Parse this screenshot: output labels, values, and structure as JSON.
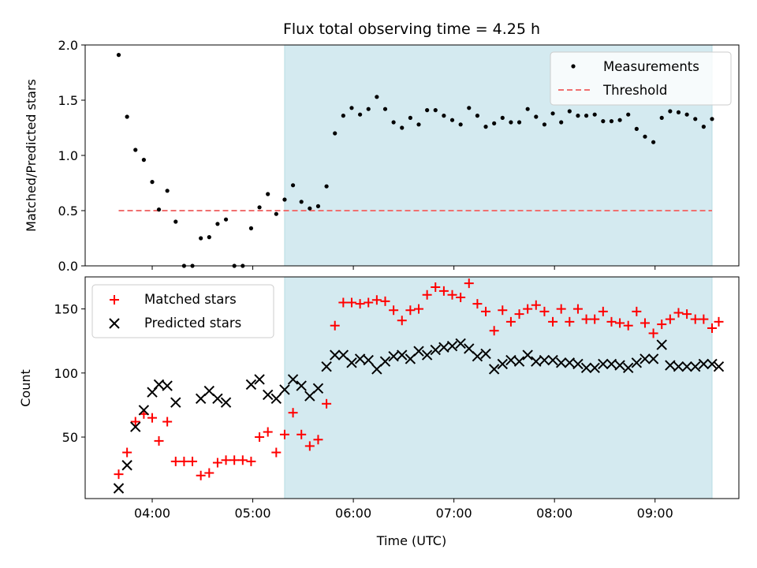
{
  "chart_data": [
    {
      "type": "scatter",
      "title": "Flux total observing time = 4.25 h",
      "xlabel": "",
      "ylabel": "Matched/Predicted stars",
      "ylim": [
        0,
        2.0
      ],
      "yticks": [
        "0.0",
        "0.5",
        "1.0",
        "1.5",
        "2.0"
      ],
      "x_time_range": [
        "03:20",
        "09:50"
      ],
      "shaded_span": [
        "05:19",
        "09:34"
      ],
      "shade_color": "#d4eaf0",
      "legend": {
        "placement": "top-right",
        "entries": [
          "Measurements",
          "Threshold"
        ]
      },
      "series": [
        {
          "name": "Measurements",
          "color": "#000000",
          "marker": "dot",
          "points": [
            [
              "03:40",
              1.91
            ],
            [
              "03:45",
              1.35
            ],
            [
              "03:50",
              1.05
            ],
            [
              "03:55",
              0.96
            ],
            [
              "04:00",
              0.76
            ],
            [
              "04:04",
              0.51
            ],
            [
              "04:09",
              0.68
            ],
            [
              "04:14",
              0.4
            ],
            [
              "04:19",
              0.0
            ],
            [
              "04:24",
              0.0
            ],
            [
              "04:29",
              0.25
            ],
            [
              "04:34",
              0.26
            ],
            [
              "04:39",
              0.38
            ],
            [
              "04:44",
              0.42
            ],
            [
              "04:49",
              0.0
            ],
            [
              "04:54",
              0.0
            ],
            [
              "04:59",
              0.34
            ],
            [
              "05:04",
              0.53
            ],
            [
              "05:09",
              0.65
            ],
            [
              "05:14",
              0.47
            ],
            [
              "05:19",
              0.6
            ],
            [
              "05:24",
              0.73
            ],
            [
              "05:29",
              0.58
            ],
            [
              "05:34",
              0.52
            ],
            [
              "05:39",
              0.54
            ],
            [
              "05:44",
              0.72
            ],
            [
              "05:49",
              1.2
            ],
            [
              "05:54",
              1.36
            ],
            [
              "05:59",
              1.43
            ],
            [
              "06:04",
              1.37
            ],
            [
              "06:09",
              1.42
            ],
            [
              "06:14",
              1.53
            ],
            [
              "06:19",
              1.42
            ],
            [
              "06:24",
              1.3
            ],
            [
              "06:29",
              1.25
            ],
            [
              "06:34",
              1.34
            ],
            [
              "06:39",
              1.28
            ],
            [
              "06:44",
              1.41
            ],
            [
              "06:49",
              1.41
            ],
            [
              "06:54",
              1.36
            ],
            [
              "06:59",
              1.32
            ],
            [
              "07:04",
              1.28
            ],
            [
              "07:09",
              1.43
            ],
            [
              "07:14",
              1.36
            ],
            [
              "07:19",
              1.26
            ],
            [
              "07:24",
              1.29
            ],
            [
              "07:29",
              1.34
            ],
            [
              "07:34",
              1.3
            ],
            [
              "07:39",
              1.3
            ],
            [
              "07:44",
              1.42
            ],
            [
              "07:49",
              1.35
            ],
            [
              "07:54",
              1.28
            ],
            [
              "07:59",
              1.38
            ],
            [
              "08:04",
              1.3
            ],
            [
              "08:09",
              1.4
            ],
            [
              "08:14",
              1.36
            ],
            [
              "08:19",
              1.36
            ],
            [
              "08:24",
              1.37
            ],
            [
              "08:29",
              1.31
            ],
            [
              "08:34",
              1.31
            ],
            [
              "08:39",
              1.32
            ],
            [
              "08:44",
              1.37
            ],
            [
              "08:49",
              1.24
            ],
            [
              "08:54",
              1.17
            ],
            [
              "08:59",
              1.12
            ],
            [
              "09:04",
              1.34
            ],
            [
              "09:09",
              1.4
            ],
            [
              "09:14",
              1.39
            ],
            [
              "09:19",
              1.37
            ],
            [
              "09:24",
              1.33
            ],
            [
              "09:29",
              1.26
            ],
            [
              "09:34",
              1.33
            ]
          ]
        },
        {
          "name": "Threshold",
          "color": "#f07070",
          "style": "dashed",
          "points": [
            [
              "03:40",
              0.5
            ],
            [
              "09:34",
              0.5
            ]
          ]
        }
      ]
    },
    {
      "type": "scatter",
      "title": "",
      "xlabel": "Time (UTC)",
      "ylabel": "Count",
      "ylim": [
        2,
        175
      ],
      "yticks": [
        "50",
        "100",
        "150"
      ],
      "xticks": [
        "04:00",
        "05:00",
        "06:00",
        "07:00",
        "08:00",
        "09:00"
      ],
      "x_time_range": [
        "03:20",
        "09:50"
      ],
      "shaded_span": [
        "05:19",
        "09:34"
      ],
      "shade_color": "#d4eaf0",
      "legend": {
        "placement": "top-left",
        "entries": [
          "Matched stars",
          "Predicted stars"
        ]
      },
      "series": [
        {
          "name": "Matched stars",
          "color": "#ff0000",
          "marker": "plus",
          "points": [
            [
              "03:40",
              21
            ],
            [
              "03:45",
              38
            ],
            [
              "03:50",
              62
            ],
            [
              "03:55",
              68
            ],
            [
              "04:00",
              65
            ],
            [
              "04:04",
              47
            ],
            [
              "04:09",
              62
            ],
            [
              "04:14",
              31
            ],
            [
              "04:19",
              31
            ],
            [
              "04:24",
              31
            ],
            [
              "04:29",
              20
            ],
            [
              "04:34",
              22
            ],
            [
              "04:39",
              30
            ],
            [
              "04:44",
              32
            ],
            [
              "04:49",
              32
            ],
            [
              "04:54",
              32
            ],
            [
              "04:59",
              31
            ],
            [
              "05:04",
              50
            ],
            [
              "05:09",
              54
            ],
            [
              "05:14",
              38
            ],
            [
              "05:19",
              52
            ],
            [
              "05:24",
              69
            ],
            [
              "05:29",
              52
            ],
            [
              "05:34",
              43
            ],
            [
              "05:39",
              48
            ],
            [
              "05:44",
              76
            ],
            [
              "05:49",
              137
            ],
            [
              "05:54",
              155
            ],
            [
              "05:59",
              155
            ],
            [
              "06:04",
              154
            ],
            [
              "06:09",
              155
            ],
            [
              "06:14",
              157
            ],
            [
              "06:19",
              156
            ],
            [
              "06:24",
              149
            ],
            [
              "06:29",
              141
            ],
            [
              "06:34",
              149
            ],
            [
              "06:39",
              150
            ],
            [
              "06:44",
              161
            ],
            [
              "06:49",
              167
            ],
            [
              "06:54",
              164
            ],
            [
              "06:59",
              161
            ],
            [
              "07:04",
              159
            ],
            [
              "07:09",
              170
            ],
            [
              "07:14",
              154
            ],
            [
              "07:19",
              148
            ],
            [
              "07:24",
              133
            ],
            [
              "07:29",
              149
            ],
            [
              "07:34",
              140
            ],
            [
              "07:39",
              146
            ],
            [
              "07:44",
              150
            ],
            [
              "07:49",
              153
            ],
            [
              "07:54",
              148
            ],
            [
              "07:59",
              140
            ],
            [
              "08:04",
              150
            ],
            [
              "08:09",
              140
            ],
            [
              "08:14",
              150
            ],
            [
              "08:19",
              142
            ],
            [
              "08:24",
              142
            ],
            [
              "08:29",
              148
            ],
            [
              "08:34",
              140
            ],
            [
              "08:39",
              139
            ],
            [
              "08:44",
              137
            ],
            [
              "08:49",
              148
            ],
            [
              "08:54",
              139
            ],
            [
              "08:59",
              131
            ],
            [
              "09:04",
              138
            ],
            [
              "09:09",
              142
            ],
            [
              "09:14",
              147
            ],
            [
              "09:19",
              146
            ],
            [
              "09:24",
              142
            ],
            [
              "09:29",
              142
            ],
            [
              "09:34",
              135
            ],
            [
              "09:38",
              140
            ]
          ]
        },
        {
          "name": "Predicted stars",
          "color": "#000000",
          "marker": "x",
          "points": [
            [
              "03:40",
              10
            ],
            [
              "03:45",
              28
            ],
            [
              "03:50",
              58
            ],
            [
              "03:55",
              71
            ],
            [
              "04:00",
              85
            ],
            [
              "04:04",
              91
            ],
            [
              "04:09",
              90
            ],
            [
              "04:14",
              77
            ],
            [
              "04:29",
              80
            ],
            [
              "04:34",
              86
            ],
            [
              "04:39",
              80
            ],
            [
              "04:44",
              77
            ],
            [
              "04:59",
              91
            ],
            [
              "05:04",
              95
            ],
            [
              "05:09",
              83
            ],
            [
              "05:14",
              80
            ],
            [
              "05:19",
              87
            ],
            [
              "05:24",
              95
            ],
            [
              "05:29",
              90
            ],
            [
              "05:34",
              82
            ],
            [
              "05:39",
              88
            ],
            [
              "05:44",
              105
            ],
            [
              "05:49",
              114
            ],
            [
              "05:54",
              114
            ],
            [
              "05:59",
              108
            ],
            [
              "06:04",
              111
            ],
            [
              "06:09",
              110
            ],
            [
              "06:14",
              103
            ],
            [
              "06:19",
              109
            ],
            [
              "06:24",
              113
            ],
            [
              "06:29",
              114
            ],
            [
              "06:34",
              111
            ],
            [
              "06:39",
              117
            ],
            [
              "06:44",
              114
            ],
            [
              "06:49",
              118
            ],
            [
              "06:54",
              120
            ],
            [
              "06:59",
              121
            ],
            [
              "07:04",
              123
            ],
            [
              "07:09",
              119
            ],
            [
              "07:14",
              113
            ],
            [
              "07:19",
              115
            ],
            [
              "07:24",
              103
            ],
            [
              "07:29",
              107
            ],
            [
              "07:34",
              110
            ],
            [
              "07:39",
              109
            ],
            [
              "07:44",
              114
            ],
            [
              "07:49",
              109
            ],
            [
              "07:54",
              110
            ],
            [
              "07:59",
              110
            ],
            [
              "08:04",
              108
            ],
            [
              "08:09",
              108
            ],
            [
              "08:14",
              107
            ],
            [
              "08:19",
              104
            ],
            [
              "08:24",
              104
            ],
            [
              "08:29",
              107
            ],
            [
              "08:34",
              107
            ],
            [
              "08:39",
              106
            ],
            [
              "08:44",
              104
            ],
            [
              "08:49",
              108
            ],
            [
              "08:54",
              111
            ],
            [
              "08:59",
              111
            ],
            [
              "09:04",
              122
            ],
            [
              "09:09",
              106
            ],
            [
              "09:14",
              105
            ],
            [
              "09:19",
              105
            ],
            [
              "09:24",
              105
            ],
            [
              "09:29",
              107
            ],
            [
              "09:34",
              107
            ],
            [
              "09:38",
              105
            ]
          ]
        }
      ]
    }
  ]
}
